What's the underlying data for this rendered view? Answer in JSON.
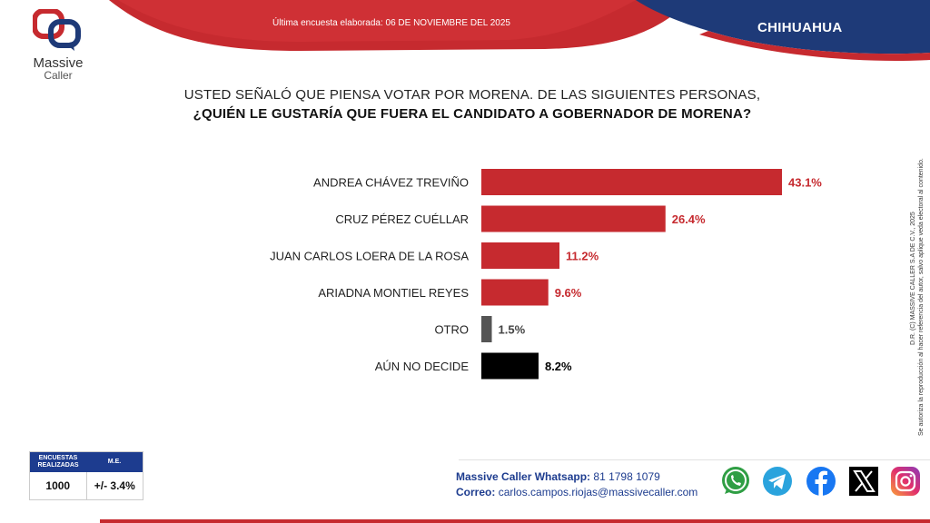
{
  "header": {
    "survey_date": "Última encuesta elaborada: 06 DE NOVIEMBRE DEL 2025",
    "state": "CHIHUAHUA",
    "brand_line1": "Massive",
    "brand_line2": "Caller",
    "colors": {
      "red": "#c62a2f",
      "navy": "#1e3a78"
    }
  },
  "question": {
    "line1": "USTED SEÑALÓ QUE PIENSA VOTAR POR MORENA. DE LAS SIGUIENTES PERSONAS,",
    "line2": "¿QUIÉN LE GUSTARÍA QUE FUERA EL CANDIDATO A GOBERNADOR DE MORENA?"
  },
  "chart_data": {
    "type": "bar",
    "orientation": "horizontal",
    "categories": [
      "ANDREA CHÁVEZ TREVIÑO",
      "CRUZ PÉREZ CUÉLLAR",
      "JUAN CARLOS LOERA DE LA ROSA",
      "ARIADNA MONTIEL REYES",
      "OTRO",
      "AÚN NO DECIDE"
    ],
    "values": [
      43.1,
      26.4,
      11.2,
      9.6,
      1.5,
      8.2
    ],
    "value_labels": [
      "43.1%",
      "26.4%",
      "11.2%",
      "9.6%",
      "1.5%",
      "8.2%"
    ],
    "bar_colors": [
      "#c62a2f",
      "#c62a2f",
      "#c62a2f",
      "#c62a2f",
      "#555555",
      "#000000"
    ],
    "label_colors": [
      "#c62a2f",
      "#c62a2f",
      "#c62a2f",
      "#c62a2f",
      "#444444",
      "#000000"
    ],
    "xlim": [
      0,
      43.1
    ],
    "grid": false,
    "legend": "none"
  },
  "copyright": {
    "line1": "D.R. (C) MASSIVE CALLER S.A DE C.V., 2025",
    "line2": "Se autoriza la reproducción al hacer referencia del autor, salvo aplique veda electoral al contenido."
  },
  "stats": {
    "sample_header": "ENCUESTAS REALIZADAS",
    "sample_value": "1000",
    "error_header": "M.E.",
    "error_value": "+/- 3.4%"
  },
  "contact": {
    "whatsapp_label": "Massive Caller Whatsapp:",
    "whatsapp_value": "81 1798 1079",
    "email_label": "Correo:",
    "email_value": "carlos.campos.riojas@massivecaller.com"
  },
  "social": [
    {
      "icon": "whatsapp-icon",
      "color": "#2f9e44"
    },
    {
      "icon": "telegram-icon",
      "color": "#2aa3dd"
    },
    {
      "icon": "facebook-icon",
      "color": "#1877f2"
    },
    {
      "icon": "x-icon",
      "color": "#000000"
    },
    {
      "icon": "instagram-icon",
      "color": "#d6297a"
    }
  ]
}
